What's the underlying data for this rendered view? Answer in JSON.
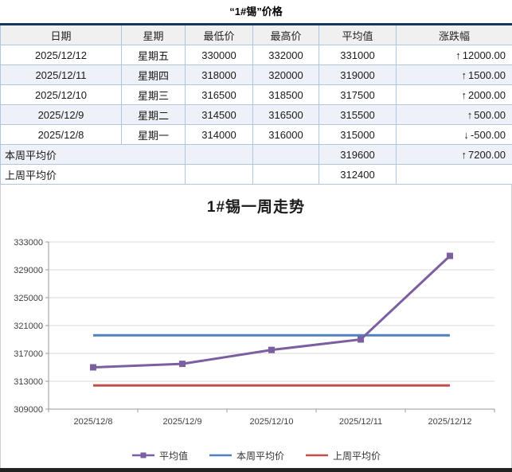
{
  "page_title": "“1#锡”价格",
  "icons": {
    "up_arrow": "↑",
    "down_arrow": "↓"
  },
  "colors": {
    "up": "#FF0000",
    "down": "#00A650",
    "table_top_border": "#17375E",
    "table_grid": "#AFC6E2",
    "series_avg": "#7B5FA0",
    "series_week": "#4F81BD",
    "series_lastweek": "#C0504D"
  },
  "table": {
    "headers": [
      "日期",
      "星期",
      "最低价",
      "最高价",
      "平均值",
      "涨跌幅"
    ],
    "rows": [
      {
        "date": "2025/12/12",
        "weekday": "星期五",
        "low": "330000",
        "high": "332000",
        "avg": "331000",
        "change": "12000.00",
        "direction": "up"
      },
      {
        "date": "2025/12/11",
        "weekday": "星期四",
        "low": "318000",
        "high": "320000",
        "avg": "319000",
        "change": "1500.00",
        "direction": "up"
      },
      {
        "date": "2025/12/10",
        "weekday": "星期三",
        "low": "316500",
        "high": "318500",
        "avg": "317500",
        "change": "2000.00",
        "direction": "up"
      },
      {
        "date": "2025/12/9",
        "weekday": "星期二",
        "low": "314500",
        "high": "316500",
        "avg": "315500",
        "change": "500.00",
        "direction": "up"
      },
      {
        "date": "2025/12/8",
        "weekday": "星期一",
        "low": "314000",
        "high": "316000",
        "avg": "315000",
        "change": "-500.00",
        "direction": "down"
      }
    ],
    "summary_rows": [
      {
        "label": "本周平均价",
        "avg": "319600",
        "change": "7200.00",
        "direction": "up"
      },
      {
        "label": "上周平均价",
        "avg": "312400",
        "change": "",
        "direction": ""
      }
    ]
  },
  "chart_data": {
    "type": "line",
    "title": "1#锡一周走势",
    "categories": [
      "2025/12/8",
      "2025/12/9",
      "2025/12/10",
      "2025/12/11",
      "2025/12/12"
    ],
    "series": [
      {
        "name": "本周平均价",
        "values": [
          319600,
          319600,
          319600,
          319600,
          319600
        ],
        "color": "#4F81BD",
        "marker": "none"
      },
      {
        "name": "上周平均价",
        "values": [
          312400,
          312400,
          312400,
          312400,
          312400
        ],
        "color": "#C0504D",
        "marker": "none"
      },
      {
        "name": "平均值",
        "values": [
          315000,
          315500,
          317500,
          319000,
          331000
        ],
        "color": "#7B5FA0",
        "marker": "square"
      }
    ],
    "legend_order": [
      "平均值",
      "本周平均价",
      "上周平均价"
    ],
    "ylim": [
      309000,
      333000
    ],
    "ytick_step": 4000,
    "grid": true,
    "legend_position": "bottom"
  }
}
